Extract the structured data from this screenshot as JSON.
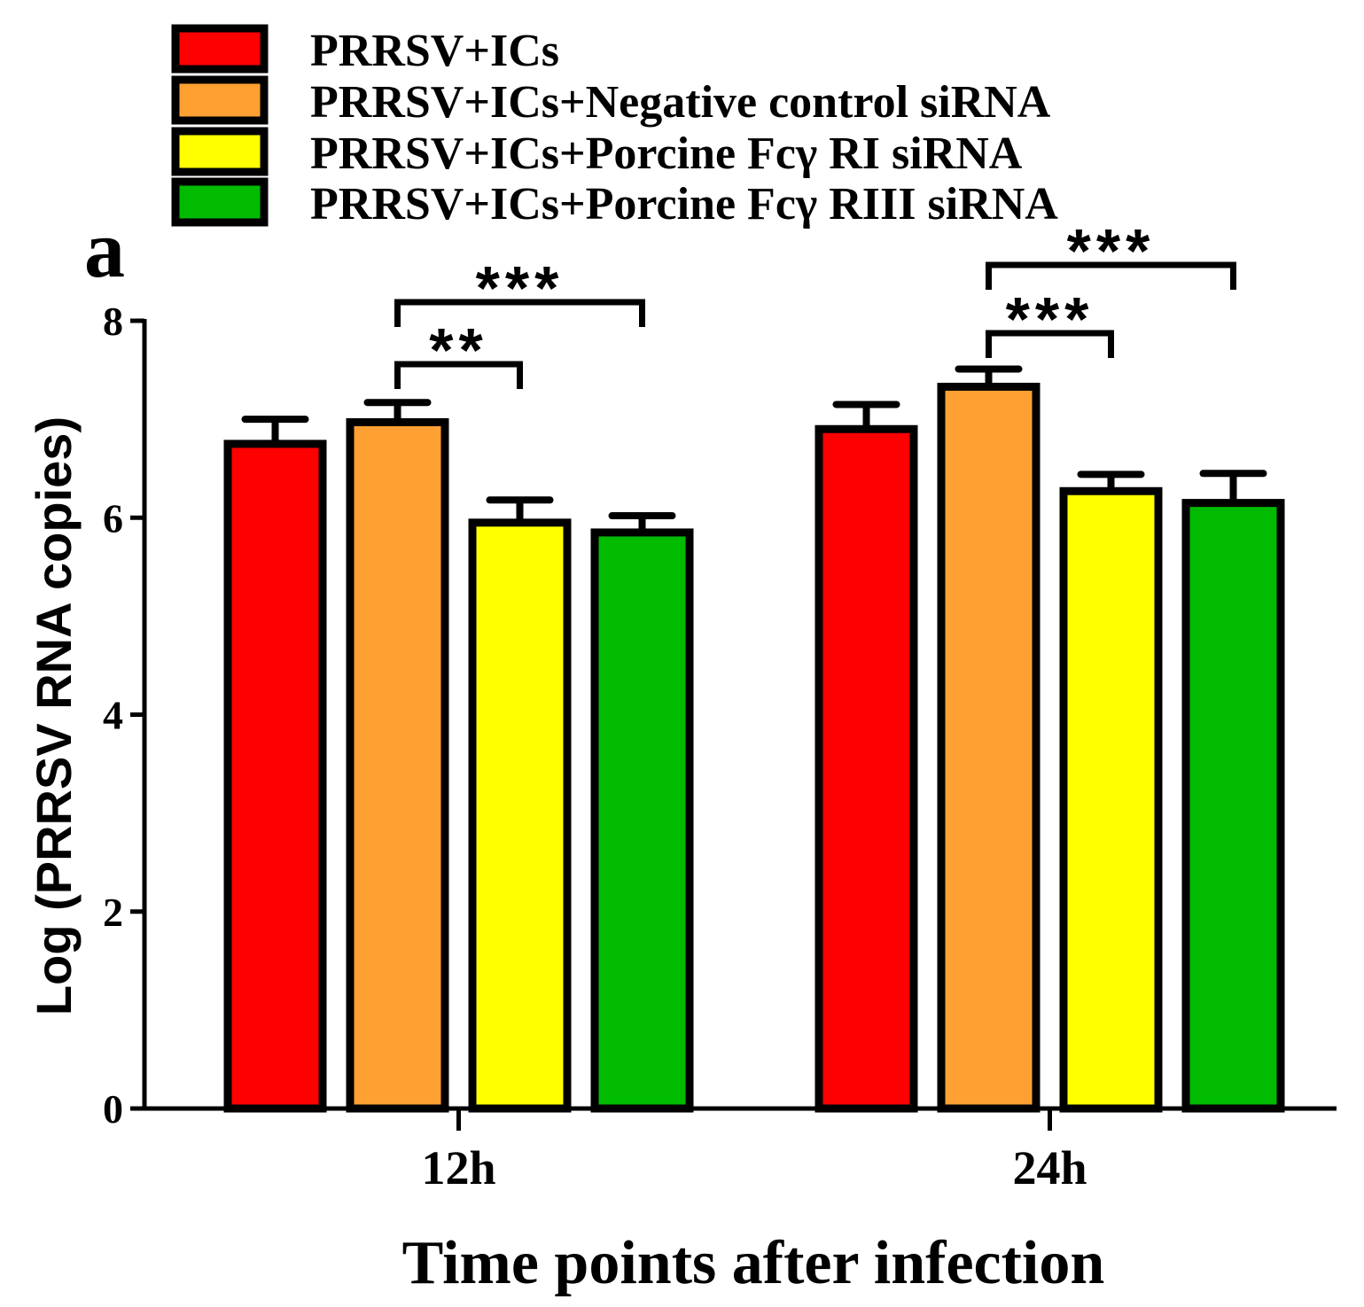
{
  "chart_data": {
    "type": "bar",
    "panel_label": "a",
    "title": "",
    "categories": [
      "12h",
      "24h"
    ],
    "xlabel": "Time points after infection",
    "ylabel": "Log (PRRSV RNA copies)",
    "ylim": [
      0,
      8
    ],
    "yticks": [
      "0",
      "2",
      "4",
      "6",
      "8"
    ],
    "grid": false,
    "legend_position": "top",
    "series": [
      {
        "name": "PRRSV+ICs",
        "color": "#ff0000",
        "values": [
          6.75,
          6.9
        ],
        "errors": [
          0.25,
          0.25
        ]
      },
      {
        "name": "PRRSV+ICs+Negative control siRNA",
        "color": "#ffa033",
        "values": [
          6.97,
          7.33
        ],
        "errors": [
          0.2,
          0.18
        ]
      },
      {
        "name": "PRRSV+ICs+Porcine Fcγ  RI siRNA",
        "color": "#ffff00",
        "values": [
          5.95,
          6.27
        ],
        "errors": [
          0.23,
          0.17
        ]
      },
      {
        "name": "PRRSV+ICs+Porcine Fcγ  RIII siRNA",
        "color": "#00bb00",
        "values": [
          5.85,
          6.15
        ],
        "errors": [
          0.17,
          0.3
        ]
      }
    ],
    "significance": [
      {
        "category": "12h",
        "from_series": 1,
        "to_series": 2,
        "label": "**"
      },
      {
        "category": "12h",
        "from_series": 1,
        "to_series": 3,
        "label": "***"
      },
      {
        "category": "24h",
        "from_series": 1,
        "to_series": 2,
        "label": "***"
      },
      {
        "category": "24h",
        "from_series": 1,
        "to_series": 3,
        "label": "***"
      }
    ]
  }
}
